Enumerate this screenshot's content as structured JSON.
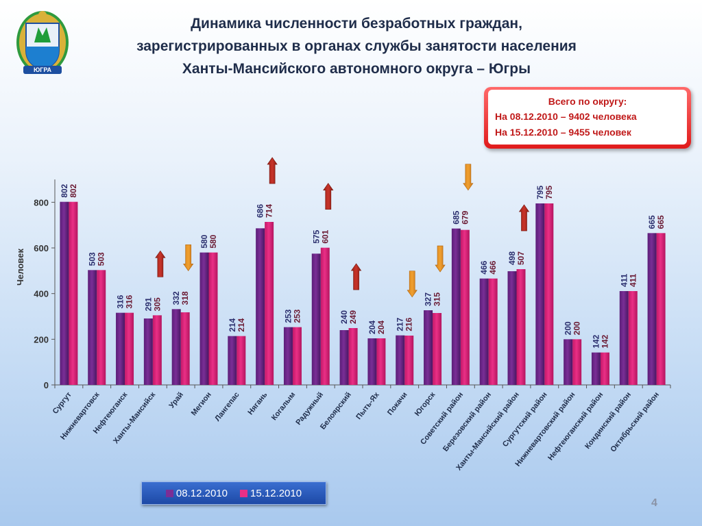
{
  "title": {
    "line1": "Динамика численности безработных граждан,",
    "line2": "зарегистрированных в органах службы занятости населения",
    "line3": "Ханты-Мансийского автономного округа – Югры"
  },
  "emblem": {
    "banner_text": "ЮГРА",
    "icon": "coat-of-arms-icon"
  },
  "info_box": {
    "line1": "Всего по округу:",
    "line2": "На 08.12.2010 – 9402 человека",
    "line3": "На 15.12.2010 – 9455 человек"
  },
  "page_number": "4",
  "colors": {
    "series1": "#7a2e96",
    "series2": "#ea2f86",
    "arrow_up": "#c8342a",
    "arrow_down": "#f0a030",
    "label1": "#2b2f6e",
    "label2": "#6b1b34"
  },
  "chart_data": {
    "type": "bar",
    "ylabel": "Человек",
    "ylim": [
      0,
      900
    ],
    "yticks": [
      0,
      200,
      400,
      600,
      800
    ],
    "legend_position": "bottom-center",
    "grid": false,
    "categories": [
      "Сургут",
      "Нижневартовск",
      "Нефтеюганск",
      "Ханты-Мансийск",
      "Урай",
      "Мегион",
      "Лангепас",
      "Нягань",
      "Когалым",
      "Радужный",
      "Белоярский",
      "Пыть-Ях",
      "Покачи",
      "Югорск",
      "Советский район",
      "Березовский район",
      "Ханты-Мансийский район",
      "Сургутский район",
      "Нижневартовский район",
      "Нефтеюганский район",
      "Кондинский район",
      "Октябрьский район"
    ],
    "series": [
      {
        "name": "08.12.2010",
        "values": [
          802,
          503,
          316,
          291,
          332,
          580,
          214,
          686,
          253,
          575,
          240,
          204,
          217,
          327,
          685,
          466,
          498,
          795,
          200,
          142,
          411,
          665
        ]
      },
      {
        "name": "15.12.2010",
        "values": [
          802,
          503,
          316,
          305,
          318,
          580,
          214,
          714,
          253,
          601,
          249,
          204,
          216,
          315,
          679,
          466,
          507,
          795,
          200,
          142,
          411,
          665
        ]
      }
    ],
    "trend_arrows": [
      {
        "category": "Ханты-Мансийск",
        "direction": "up"
      },
      {
        "category": "Урай",
        "direction": "down"
      },
      {
        "category": "Нягань",
        "direction": "up"
      },
      {
        "category": "Радужный",
        "direction": "up"
      },
      {
        "category": "Белоярский",
        "direction": "up"
      },
      {
        "category": "Покачи",
        "direction": "down"
      },
      {
        "category": "Югорск",
        "direction": "down"
      },
      {
        "category": "Советский район",
        "direction": "down"
      },
      {
        "category": "Ханты-Мансийский район",
        "direction": "up"
      }
    ]
  }
}
